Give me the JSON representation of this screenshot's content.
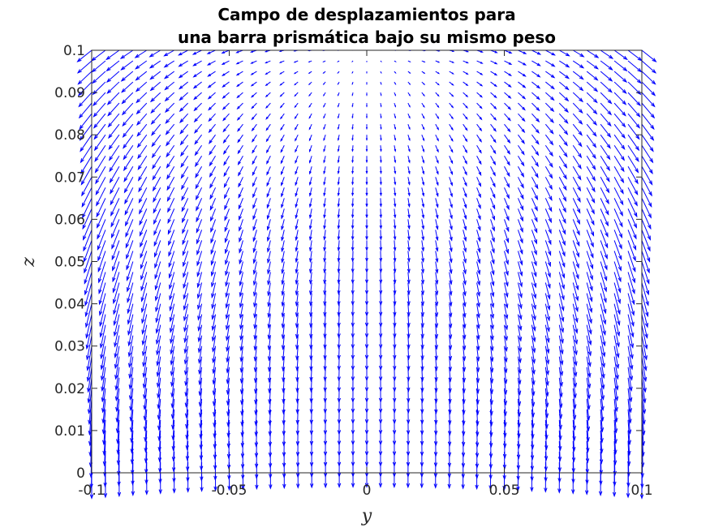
{
  "chart_data": {
    "type": "quiver",
    "title": [
      "Campo de desplazamientos para",
      "una barra prismática bajo su mismo peso"
    ],
    "xlabel": "y",
    "ylabel": "z",
    "xlim": [
      -0.1,
      0.1
    ],
    "ylim": [
      0,
      0.1
    ],
    "xticks": [
      -0.1,
      -0.05,
      0,
      0.05,
      0.1
    ],
    "xtick_labels": [
      "-0.1",
      "-0.05",
      "0",
      "0.05",
      "0.1"
    ],
    "yticks": [
      0,
      0.01,
      0.02,
      0.03,
      0.04,
      0.05,
      0.06,
      0.07,
      0.08,
      0.09,
      0.1
    ],
    "ytick_labels": [
      "0",
      "0.01",
      "0.02",
      "0.03",
      "0.04",
      "0.05",
      "0.06",
      "0.07",
      "0.08",
      "0.09",
      "0.1"
    ],
    "grid": false,
    "box": true,
    "arrow_color": "#0000ff",
    "grid_points": {
      "nx": 41,
      "ny": 41,
      "dx": 0.005,
      "dz": 0.0025
    },
    "field": {
      "u": "y*z",
      "w": "-(0.1^2 - z^2) - 0.8*y^2"
    }
  }
}
